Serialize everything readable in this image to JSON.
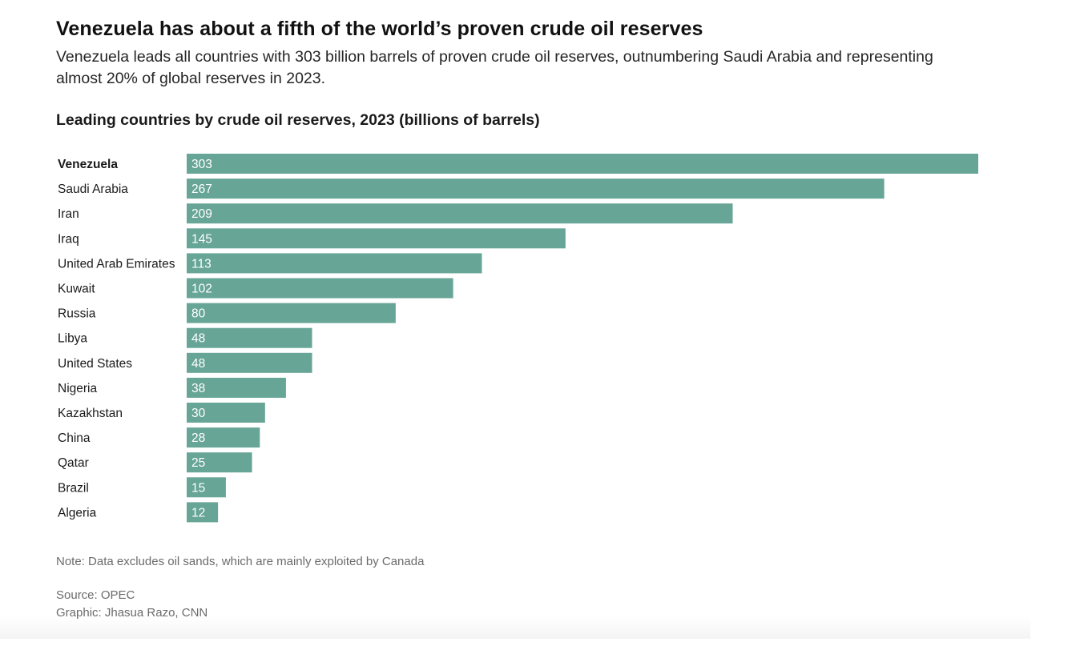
{
  "headline": "Venezuela has about a fifth of the world’s proven crude oil reserves",
  "subhead": "Venezuela leads all countries with 303 billion barrels of proven crude oil reserves, outnumbering Saudi Arabia and representing almost 20% of global reserves in 2023.",
  "footer": {
    "note": "Note: Data excludes oil sands, which are mainly exploited by Canada",
    "source": "Source: OPEC",
    "credit": "Graphic: Jhasua Razo, CNN"
  },
  "chart_data": {
    "type": "bar",
    "orientation": "horizontal",
    "title": "Leading countries by crude oil reserves, 2023 (billions of barrels)",
    "xlabel": "",
    "ylabel": "",
    "xlim": [
      0,
      303
    ],
    "grid": false,
    "highlight_category": "Venezuela",
    "bar_color": "#67a596",
    "label_color": "#ffffff",
    "categories": [
      "Venezuela",
      "Saudi Arabia",
      "Iran",
      "Iraq",
      "United Arab Emirates",
      "Kuwait",
      "Russia",
      "Libya",
      "United States",
      "Nigeria",
      "Kazakhstan",
      "China",
      "Qatar",
      "Brazil",
      "Algeria"
    ],
    "values": [
      303,
      267,
      209,
      145,
      113,
      102,
      80,
      48,
      48,
      38,
      30,
      28,
      25,
      15,
      12
    ]
  }
}
